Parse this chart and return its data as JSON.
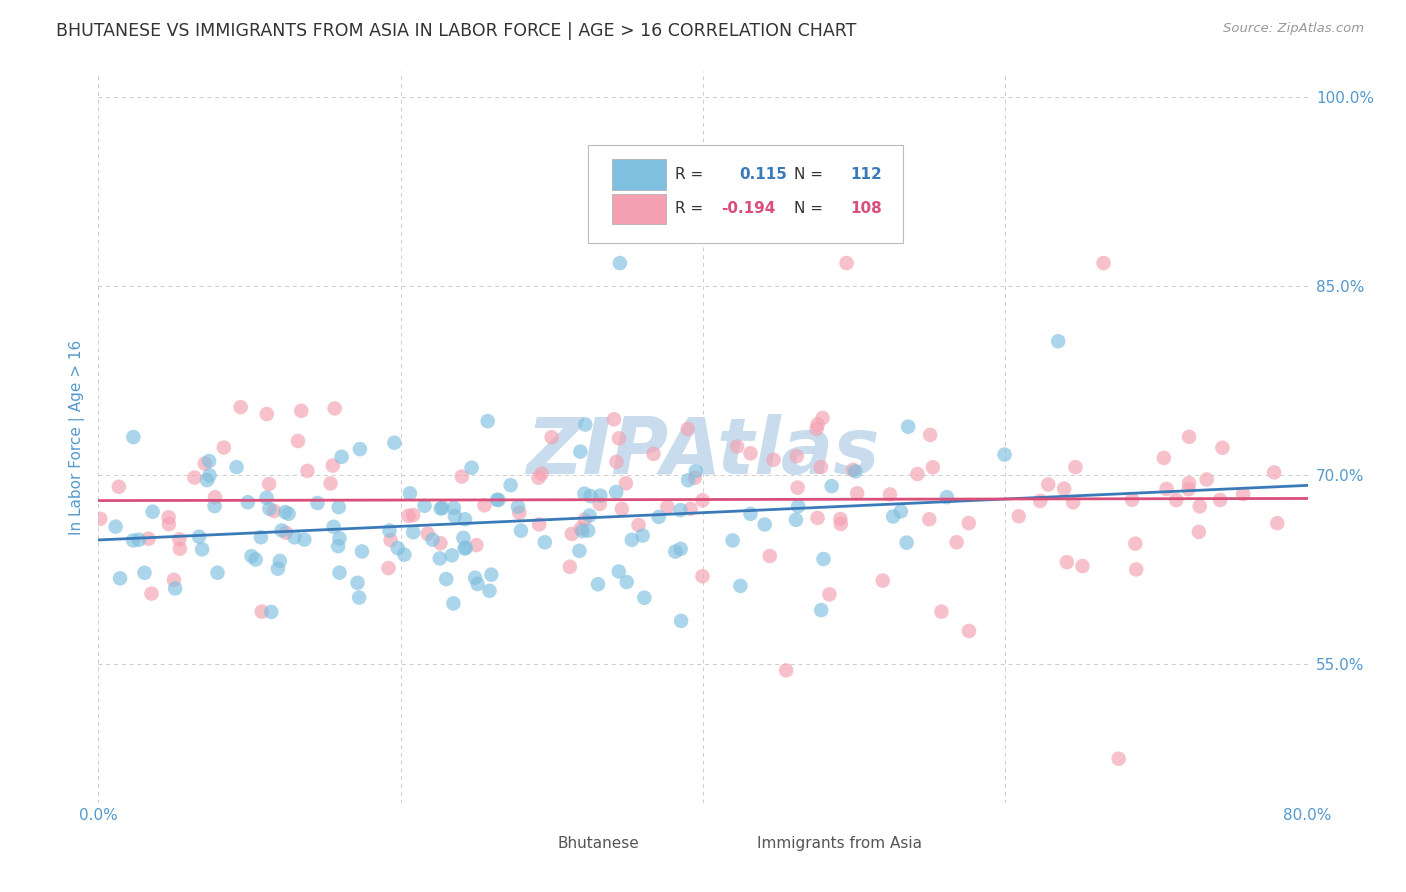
{
  "title": "BHUTANESE VS IMMIGRANTS FROM ASIA IN LABOR FORCE | AGE > 16 CORRELATION CHART",
  "source_text": "Source: ZipAtlas.com",
  "ylabel": "In Labor Force | Age > 16",
  "xlim": [
    0.0,
    0.8
  ],
  "ylim": [
    0.44,
    1.02
  ],
  "yticks": [
    0.55,
    0.7,
    0.85,
    1.0
  ],
  "ytick_labels_right": [
    "55.0%",
    "70.0%",
    "85.0%",
    "100.0%"
  ],
  "xticks": [
    0.0,
    0.2,
    0.4,
    0.6,
    0.8
  ],
  "xtick_labels": [
    "0.0%",
    "",
    "",
    "",
    "80.0%"
  ],
  "blue_color": "#7fbfdf",
  "pink_color": "#f4a0b0",
  "blue_line_color": "#3a7ab8",
  "pink_line_color": "#d94f7a",
  "title_color": "#333333",
  "axis_tick_color": "#5599cc",
  "watermark_color": "#c8dcee",
  "background_color": "#ffffff",
  "grid_color": "#cccccc",
  "R1": 0.115,
  "N1": 112,
  "R2": -0.194,
  "N2": 108,
  "seed": 1234
}
